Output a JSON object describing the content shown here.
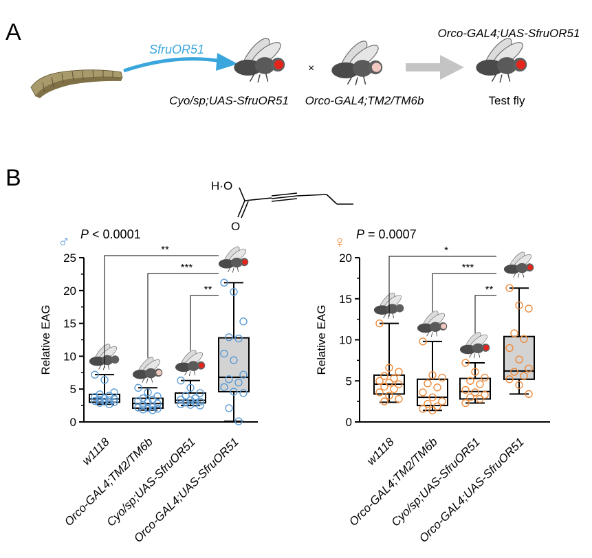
{
  "panel_a": {
    "label": "A",
    "arrow_label": "SfruOR51",
    "cross_symbol": "×",
    "top_genotype": "Orco-GAL4;UAS-SfruOR51",
    "label_1": "Cyo/sp;UAS-SfruOR51",
    "label_2": "Orco-GAL4;TM2/TM6b",
    "label_3": "Test fly",
    "colors": {
      "blue_arrow": "#3aa6dc",
      "grey_arrow": "#c4c4c4",
      "eye_red": "#e5251c",
      "eye_pink": "#f2c9c0"
    }
  },
  "panel_b": {
    "label": "B",
    "compound_label": "H·O",
    "compound_o": "O"
  },
  "chart_data": [
    {
      "type": "box",
      "sex_symbol": "♂",
      "p_text": "P < 0.0001",
      "ylabel": "Relative EAG",
      "ylim": [
        0,
        25
      ],
      "yticks": [
        "0",
        "5",
        "10",
        "15",
        "20",
        "25"
      ],
      "categories": [
        "w1118",
        "Orco-GAL4;TM2/TM6b",
        "Cyo/sp;UAS-SfruOR51",
        "Orco-GAL4;UAS-SfruOR51"
      ],
      "point_color": "#5b9bd5",
      "boxes": [
        {
          "min": 2.7,
          "q1": 3.0,
          "median": 3.5,
          "q3": 4.2,
          "max": 7.2,
          "points": [
            7.2,
            6.4,
            4.5,
            4.2,
            4.0,
            3.8,
            3.6,
            3.5,
            3.4,
            3.3,
            3.2,
            3.1,
            3.0,
            2.9,
            2.7
          ],
          "shaded": false
        },
        {
          "min": 1.8,
          "q1": 2.1,
          "median": 2.8,
          "q3": 3.6,
          "max": 5.2,
          "points": [
            5.2,
            4.5,
            3.9,
            3.6,
            3.4,
            3.2,
            3.0,
            2.8,
            2.6,
            2.4,
            2.2,
            2.1,
            2.0,
            1.9,
            1.8
          ],
          "shaded": false
        },
        {
          "min": 2.5,
          "q1": 2.9,
          "median": 3.3,
          "q3": 4.4,
          "max": 6.3,
          "points": [
            6.3,
            5.2,
            4.4,
            4.0,
            3.6,
            3.4,
            3.3,
            3.1,
            3.0,
            2.9,
            2.7,
            2.6,
            2.5
          ],
          "shaded": false
        },
        {
          "min": 0.1,
          "q1": 4.6,
          "median": 6.8,
          "q3": 12.8,
          "max": 21.2,
          "points": [
            21.2,
            19.8,
            15.3,
            12.9,
            12.7,
            10.4,
            9.4,
            7.2,
            6.5,
            6.0,
            5.3,
            4.6,
            4.4,
            2.1,
            0.1
          ],
          "shaded": true
        }
      ],
      "comparisons": [
        {
          "from": 0,
          "to": 3,
          "label": "**"
        },
        {
          "from": 1,
          "to": 3,
          "label": "***"
        },
        {
          "from": 2,
          "to": 3,
          "label": "**"
        }
      ]
    },
    {
      "type": "box",
      "sex_symbol": "♀",
      "p_text": "P = 0.0007",
      "ylabel": "Relative EAG",
      "ylim": [
        0,
        20
      ],
      "yticks": [
        "0",
        "5",
        "10",
        "15",
        "20"
      ],
      "categories": [
        "w1118",
        "Orco-GAL4;TM2/TM6b",
        "Cyo/sp;UAS-SfruOR51",
        "Orco-GAL4;UAS-SfruOR51"
      ],
      "point_color": "#ee8a3a",
      "boxes": [
        {
          "min": 2.4,
          "q1": 3.4,
          "median": 4.6,
          "q3": 5.7,
          "max": 12.0,
          "points": [
            12.0,
            6.6,
            6.1,
            5.6,
            5.3,
            5.0,
            4.8,
            4.6,
            4.3,
            4.0,
            3.6,
            3.2,
            2.8,
            2.5
          ],
          "shaded": false
        },
        {
          "min": 1.4,
          "q1": 2.0,
          "median": 3.0,
          "q3": 5.2,
          "max": 9.8,
          "points": [
            9.8,
            5.7,
            5.4,
            4.7,
            4.2,
            3.6,
            3.0,
            2.5,
            2.2,
            1.9,
            1.6,
            1.4
          ],
          "shaded": false
        },
        {
          "min": 2.3,
          "q1": 2.8,
          "median": 3.7,
          "q3": 5.3,
          "max": 7.2,
          "points": [
            7.2,
            6.1,
            5.4,
            5.0,
            4.6,
            3.9,
            3.6,
            3.3,
            3.0,
            2.8,
            2.3
          ],
          "shaded": false
        },
        {
          "min": 3.4,
          "q1": 5.2,
          "median": 6.2,
          "q3": 10.4,
          "max": 16.3,
          "points": [
            16.3,
            14.2,
            13.8,
            10.8,
            10.1,
            9.0,
            7.6,
            6.5,
            6.1,
            5.6,
            5.2,
            4.5,
            3.4
          ],
          "shaded": true
        }
      ],
      "comparisons": [
        {
          "from": 0,
          "to": 3,
          "label": "*"
        },
        {
          "from": 1,
          "to": 3,
          "label": "***"
        },
        {
          "from": 2,
          "to": 3,
          "label": "**"
        }
      ]
    }
  ]
}
